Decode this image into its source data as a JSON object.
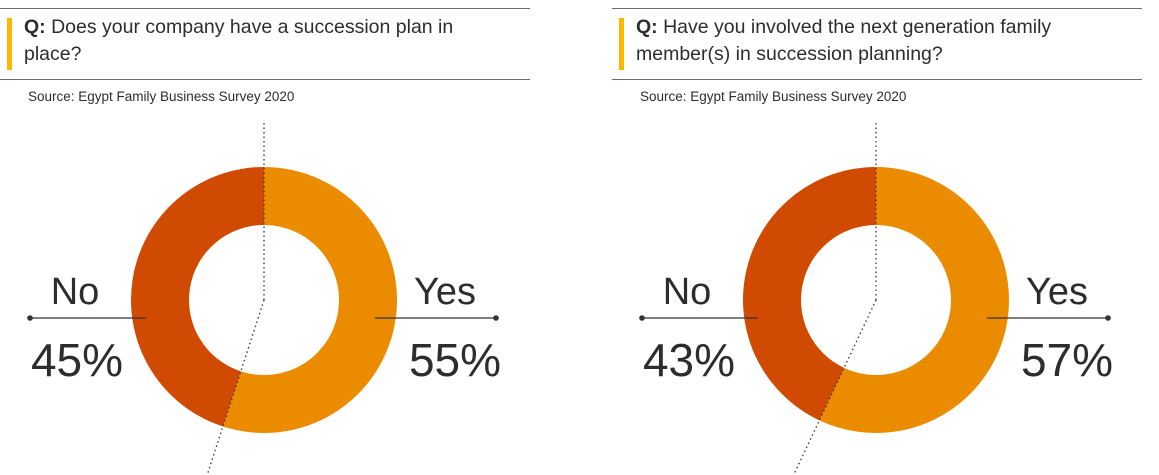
{
  "colors": {
    "yes": "#eb8c00",
    "no": "#d04a02",
    "accent": "#ffb600"
  },
  "chart_data": [
    {
      "type": "pie",
      "question_label": "Q:",
      "question": "Does your company have a succession plan in place?",
      "source": "Source: Egypt Family Business Survey 2020",
      "slices": [
        {
          "label": "Yes",
          "value": 55,
          "value_label": "55%"
        },
        {
          "label": "No",
          "value": 45,
          "value_label": "45%"
        }
      ]
    },
    {
      "type": "pie",
      "question_label": "Q:",
      "question": "Have you involved the next generation family member(s) in succession planning?",
      "source": "Source: Egypt Family Business Survey 2020",
      "slices": [
        {
          "label": "Yes",
          "value": 57,
          "value_label": "57%"
        },
        {
          "label": "No",
          "value": 43,
          "value_label": "43%"
        }
      ]
    }
  ]
}
